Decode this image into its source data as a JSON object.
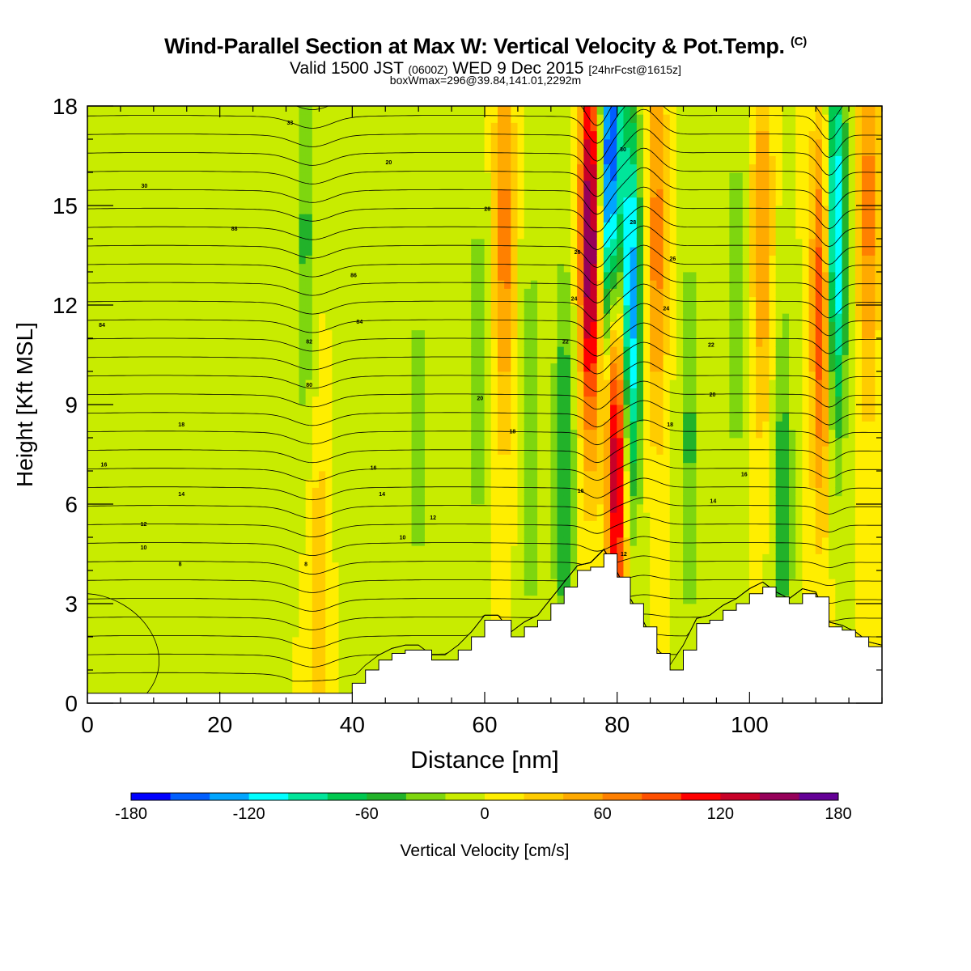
{
  "title": {
    "main": "Wind-Parallel Section at Max W: Vertical Velocity & Pot.Temp.",
    "copyright": "(C)",
    "valid_prefix": "Valid 1500 JST",
    "valid_z": "(0600Z)",
    "valid_date": "WED 9 Dec 2015",
    "forecast": "[24hrFcst@1615z]",
    "box": "boxWmax=296@39.84,141.01,2292m"
  },
  "chart_data": {
    "type": "heatmap",
    "xlabel": "Distance [nm]",
    "ylabel": "Height [Kft MSL]",
    "xlim": [
      0,
      120
    ],
    "ylim": [
      0,
      18
    ],
    "x_ticks": [
      0,
      20,
      40,
      60,
      80,
      100
    ],
    "y_ticks": [
      0,
      3,
      6,
      9,
      12,
      15,
      18
    ],
    "colorbar": {
      "label": "Vertical Velocity [cm/s]",
      "range": [
        -180,
        180
      ],
      "ticks": [
        -180,
        -120,
        -60,
        0,
        60,
        120,
        180
      ],
      "colors": [
        "#0000ff",
        "#005fff",
        "#00a5ff",
        "#00ffff",
        "#00e59a",
        "#00c850",
        "#22b22a",
        "#7ed60f",
        "#c8ec00",
        "#ffee00",
        "#ffcc00",
        "#ffaa00",
        "#ff8000",
        "#ff5000",
        "#ff0000",
        "#c80028",
        "#96005a",
        "#640096"
      ]
    },
    "terrain_height_kft": {
      "x": [
        0,
        40,
        42,
        44,
        46,
        48,
        50,
        52,
        54,
        56,
        58,
        60,
        62,
        64,
        66,
        68,
        70,
        72,
        74,
        76,
        78,
        80,
        82,
        84,
        86,
        88,
        90,
        92,
        94,
        96,
        98,
        100,
        102,
        104,
        106,
        108,
        110,
        112,
        114,
        116,
        118,
        120
      ],
      "height": [
        0.3,
        0.6,
        1.0,
        1.3,
        1.5,
        1.6,
        1.6,
        1.3,
        1.3,
        1.6,
        2.0,
        2.5,
        2.5,
        2.0,
        2.3,
        2.5,
        3.0,
        3.5,
        4.0,
        4.1,
        4.5,
        3.8,
        3.0,
        2.3,
        1.5,
        1.0,
        1.6,
        2.4,
        2.5,
        2.8,
        3.0,
        3.3,
        3.5,
        3.2,
        3.0,
        3.3,
        3.2,
        2.3,
        2.2,
        2.0,
        1.7,
        1.6
      ]
    },
    "vertical_velocity_features": [
      {
        "x": 2,
        "height": 5.0,
        "value_cm_s": -10
      },
      {
        "x": 9,
        "height": 2.5,
        "value_cm_s": -15
      },
      {
        "x": 19,
        "height": 5.0,
        "value_cm_s": -20
      },
      {
        "x": 33,
        "height": 14.0,
        "value_cm_s": -45
      },
      {
        "x": 35,
        "height": 2.5,
        "value_cm_s": 40
      },
      {
        "x": 39,
        "height": 10.0,
        "value_cm_s": -20
      },
      {
        "x": 50,
        "height": 8.0,
        "value_cm_s": -30
      },
      {
        "x": 59,
        "height": 10.0,
        "value_cm_s": -35
      },
      {
        "x": 63,
        "height": 14.0,
        "value_cm_s": 70
      },
      {
        "x": 67,
        "height": 8.0,
        "value_cm_s": -40
      },
      {
        "x": 72,
        "height": 7.0,
        "value_cm_s": -65
      },
      {
        "x": 76,
        "height": 14.0,
        "value_cm_s": 170
      },
      {
        "x": 80,
        "height": 8.0,
        "value_cm_s": 170
      },
      {
        "x": 79,
        "height": 16.0,
        "value_cm_s": -180
      },
      {
        "x": 82,
        "height": 12.0,
        "value_cm_s": -150
      },
      {
        "x": 86,
        "height": 14.0,
        "value_cm_s": 70
      },
      {
        "x": 91,
        "height": 8.0,
        "value_cm_s": -45
      },
      {
        "x": 98,
        "height": 12.0,
        "value_cm_s": -35
      },
      {
        "x": 102,
        "height": 14.0,
        "value_cm_s": 60
      },
      {
        "x": 105,
        "height": 6.0,
        "value_cm_s": -55
      },
      {
        "x": 111,
        "height": 12.0,
        "value_cm_s": 110
      },
      {
        "x": 113,
        "height": 14.0,
        "value_cm_s": -140
      },
      {
        "x": 118,
        "height": 15.0,
        "value_cm_s": 70
      }
    ],
    "theta_contour_labels": [
      {
        "x": 2.2,
        "height": 11.4,
        "text": "84"
      },
      {
        "x": 8.6,
        "height": 15.6,
        "text": "30"
      },
      {
        "x": 22.2,
        "height": 14.3,
        "text": "88"
      },
      {
        "x": 30.6,
        "height": 17.5,
        "text": "33"
      },
      {
        "x": 40.2,
        "height": 12.9,
        "text": "86"
      },
      {
        "x": 41.1,
        "height": 11.5,
        "text": "84"
      },
      {
        "x": 33.5,
        "height": 10.9,
        "text": "82"
      },
      {
        "x": 33.5,
        "height": 9.6,
        "text": "80"
      },
      {
        "x": 45.5,
        "height": 16.3,
        "text": "20"
      },
      {
        "x": 59.3,
        "height": 9.2,
        "text": "20"
      },
      {
        "x": 64.2,
        "height": 8.2,
        "text": "18"
      },
      {
        "x": 72.2,
        "height": 10.9,
        "text": "22"
      },
      {
        "x": 73.5,
        "height": 12.2,
        "text": "24"
      },
      {
        "x": 74.0,
        "height": 13.6,
        "text": "26"
      },
      {
        "x": 60.4,
        "height": 14.9,
        "text": "28"
      },
      {
        "x": 80.9,
        "height": 16.7,
        "text": "30"
      },
      {
        "x": 82.4,
        "height": 14.5,
        "text": "28"
      },
      {
        "x": 88.4,
        "height": 13.4,
        "text": "26"
      },
      {
        "x": 87.4,
        "height": 11.9,
        "text": "24"
      },
      {
        "x": 94.2,
        "height": 10.8,
        "text": "22"
      },
      {
        "x": 94.4,
        "height": 9.3,
        "text": "20"
      },
      {
        "x": 88.0,
        "height": 8.4,
        "text": "18"
      },
      {
        "x": 99.2,
        "height": 6.9,
        "text": "16"
      },
      {
        "x": 94.5,
        "height": 6.1,
        "text": "14"
      },
      {
        "x": 2.5,
        "height": 7.2,
        "text": "16"
      },
      {
        "x": 14.2,
        "height": 8.4,
        "text": "18"
      },
      {
        "x": 14.2,
        "height": 6.3,
        "text": "14"
      },
      {
        "x": 8.5,
        "height": 5.4,
        "text": "12"
      },
      {
        "x": 8.5,
        "height": 4.7,
        "text": "10"
      },
      {
        "x": 14.0,
        "height": 4.2,
        "text": "8"
      },
      {
        "x": 43.2,
        "height": 7.1,
        "text": "16"
      },
      {
        "x": 44.5,
        "height": 6.3,
        "text": "14"
      },
      {
        "x": 52.2,
        "height": 5.6,
        "text": "12"
      },
      {
        "x": 47.6,
        "height": 5.0,
        "text": "10"
      },
      {
        "x": 33.0,
        "height": 4.2,
        "text": "8"
      },
      {
        "x": 74.5,
        "height": 6.4,
        "text": "16"
      },
      {
        "x": 81.0,
        "height": 4.5,
        "text": "12"
      }
    ]
  }
}
